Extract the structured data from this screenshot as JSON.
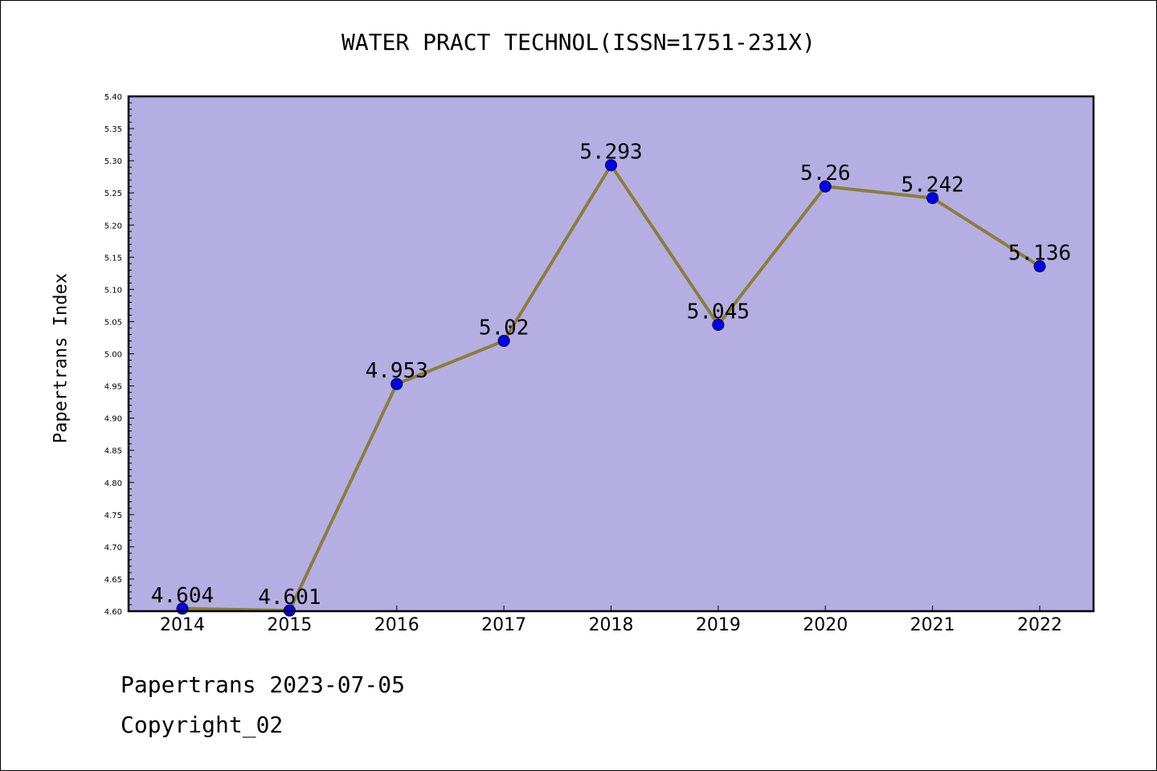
{
  "title": "WATER PRACT TECHNOL(ISSN=1751-231X)",
  "footer": {
    "date_line": "Papertrans 2023-07-05",
    "copyright_line": "Copyright_02"
  },
  "colors": {
    "plot_background": "#b5aee2",
    "line": "#8b7d3a",
    "marker": "#0000ee"
  },
  "chart_data": {
    "type": "line",
    "title": "WATER PRACT TECHNOL(ISSN=1751-231X)",
    "xlabel": "",
    "ylabel": "Papertrans Index",
    "categories": [
      "2014",
      "2015",
      "2016",
      "2017",
      "2018",
      "2019",
      "2020",
      "2021",
      "2022"
    ],
    "series": [
      {
        "values": [
          4.604,
          4.601,
          4.953,
          5.02,
          5.293,
          5.045,
          5.26,
          5.242,
          5.136
        ],
        "labels": [
          "4.604",
          "4.601",
          "4.953",
          "5.02",
          "5.293",
          "5.045",
          "5.26",
          "5.242",
          "5.136"
        ]
      }
    ],
    "ylim": [
      4.6,
      5.4
    ],
    "yticks": [
      "4.60",
      "4.65",
      "4.70",
      "4.75",
      "4.80",
      "4.85",
      "4.90",
      "4.95",
      "5.00",
      "5.05",
      "5.10",
      "5.15",
      "5.20",
      "5.25",
      "5.30",
      "5.35",
      "5.40"
    ],
    "grid": false,
    "legend": "none"
  }
}
